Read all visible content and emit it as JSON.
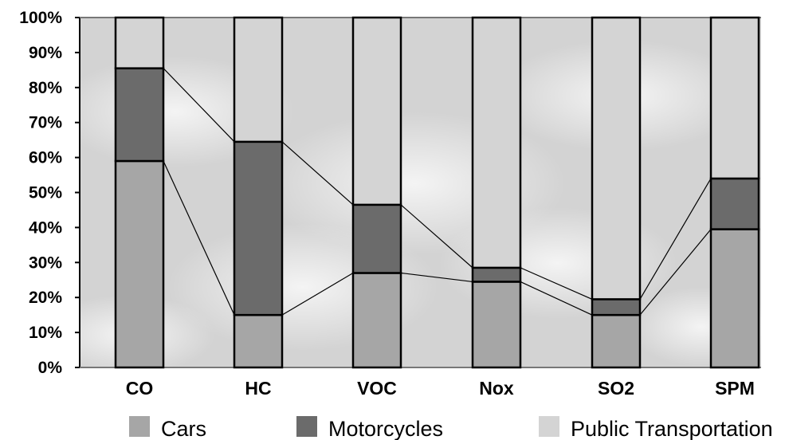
{
  "chart_data": {
    "type": "bar",
    "stacked": true,
    "percent": true,
    "categories": [
      "CO",
      "HC",
      "VOC",
      "Nox",
      "SO2",
      "SPM"
    ],
    "series": [
      {
        "name": "Cars",
        "values": [
          59,
          15,
          27,
          24.5,
          15,
          39.5
        ],
        "color": "#a6a6a6"
      },
      {
        "name": "Motorcycles",
        "values": [
          26.5,
          49.5,
          19.5,
          4,
          4.5,
          14.5
        ],
        "color": "#6b6b6b"
      },
      {
        "name": "Public Transportation",
        "values": [
          14.5,
          35.5,
          53.5,
          71.5,
          80.5,
          46
        ],
        "color": "#d4d4d4"
      }
    ],
    "yticks": [
      "0%",
      "10%",
      "20%",
      "30%",
      "40%",
      "50%",
      "60%",
      "70%",
      "80%",
      "90%",
      "100%"
    ],
    "ylim": [
      0,
      100
    ],
    "legend_position": "bottom",
    "series_lines": true,
    "background": "cloudy-sky"
  }
}
